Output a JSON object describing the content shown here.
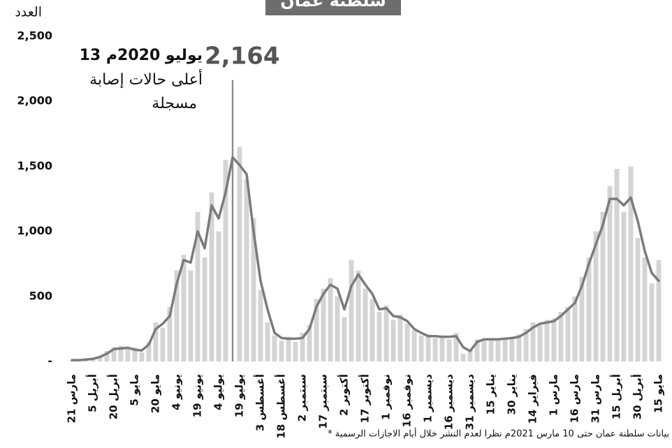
{
  "chart_data": {
    "type": "combo",
    "title": "سلطنة عمان",
    "y_label": "العدد",
    "annotations": [
      "13 يوليو 2020م",
      "أعلى حالات إصابة",
      "مسجلة"
    ],
    "footnote": "* بيانات سلطنة عمان حتى 10 مارس 2021م نظرا لعدم النشر خلال أيام الاجازات الرسمية",
    "categories": [
      "21 مارس",
      null,
      null,
      "5 أبريل",
      null,
      null,
      "20 أبريل",
      null,
      null,
      "5 مايو",
      null,
      null,
      "20 مايو",
      null,
      null,
      "4 يونيو",
      null,
      null,
      "19 يونيو",
      null,
      null,
      "4 يوليو",
      null,
      null,
      "19 يوليو",
      null,
      null,
      "3 أغسطس",
      null,
      null,
      "18 أغسطس",
      null,
      null,
      "2 سبتمبر",
      null,
      null,
      "17 سبتمبر",
      null,
      null,
      "2 أكتوبر",
      null,
      null,
      "17 أكتوبر",
      null,
      null,
      "1 نوفمبر",
      null,
      null,
      "16 نوفمبر",
      null,
      null,
      "1 ديسمبر",
      null,
      null,
      "16 ديسمبر",
      null,
      null,
      "31 ديسمبر",
      null,
      null,
      "15 يناير",
      null,
      null,
      "30 يناير",
      null,
      null,
      "14 فبراير",
      null,
      null,
      "1 مارس",
      null,
      null,
      "16 مارس",
      null,
      null,
      "31 مارس",
      null,
      null,
      "15 أبريل",
      null,
      null,
      "30 أبريل",
      null,
      null,
      "15 مايو"
    ],
    "series": [
      {
        "type": "bar",
        "color": "#d4d4d4",
        "highlight_color": "#8a8a8a",
        "values": [
          5,
          12,
          20,
          25,
          40,
          80,
          110,
          120,
          95,
          110,
          70,
          150,
          300,
          260,
          420,
          700,
          820,
          700,
          1150,
          800,
          1300,
          1000,
          1550,
          2164,
          1650,
          1400,
          1100,
          550,
          300,
          200,
          160,
          190,
          150,
          220,
          280,
          480,
          560,
          640,
          500,
          340,
          780,
          700,
          560,
          480,
          380,
          430,
          320,
          360,
          290,
          240,
          200,
          210,
          180,
          200,
          170,
          220,
          60,
          90,
          170,
          160,
          180,
          165,
          185,
          190,
          210,
          250,
          300,
          280,
          320,
          330,
          380,
          420,
          500,
          650,
          800,
          1000,
          1150,
          1350,
          1480,
          1150,
          1500,
          950,
          800,
          600,
          780
        ],
        "value_labels": [
          null,
          null,
          null,
          null,
          null,
          null,
          null,
          null,
          null,
          null,
          null,
          null,
          null,
          null,
          null,
          null,
          null,
          null,
          null,
          null,
          null,
          null,
          null,
          "2,164",
          null,
          null,
          null,
          null,
          null,
          null,
          null,
          null,
          null,
          null,
          null,
          null,
          null,
          null,
          null,
          null,
          null,
          null,
          null,
          null,
          null,
          null,
          null,
          null,
          null,
          null,
          null,
          null,
          null,
          null,
          null,
          null,
          null,
          null,
          null,
          null,
          null,
          null,
          null,
          null,
          null,
          null,
          null,
          null,
          null,
          null,
          null,
          null,
          null,
          null,
          null,
          null,
          null,
          null,
          null,
          null,
          null,
          null,
          null,
          null,
          null
        ]
      },
      {
        "type": "line",
        "color": "#7b7b7b",
        "values": [
          10,
          10,
          15,
          20,
          35,
          60,
          95,
          100,
          105,
          90,
          85,
          130,
          250,
          290,
          350,
          600,
          780,
          760,
          1000,
          870,
          1200,
          1100,
          1300,
          1570,
          1510,
          1440,
          1000,
          620,
          400,
          220,
          180,
          175,
          175,
          180,
          250,
          420,
          520,
          590,
          560,
          400,
          580,
          670,
          590,
          520,
          400,
          410,
          350,
          340,
          310,
          250,
          220,
          195,
          195,
          190,
          190,
          195,
          110,
          80,
          150,
          170,
          170,
          170,
          175,
          180,
          190,
          220,
          260,
          290,
          300,
          310,
          350,
          400,
          450,
          580,
          750,
          900,
          1050,
          1250,
          1250,
          1200,
          1260,
          1080,
          850,
          680,
          620
        ]
      }
    ],
    "ylim": [
      0,
      2500
    ],
    "yticks": [
      {
        "value": 0,
        "label": "-"
      },
      500,
      {
        "value": 1000,
        "label": "1,000"
      },
      {
        "value": 1500,
        "label": "1,500"
      },
      {
        "value": 2000,
        "label": "2,000"
      },
      {
        "value": 2500,
        "label": "2,500"
      }
    ]
  }
}
